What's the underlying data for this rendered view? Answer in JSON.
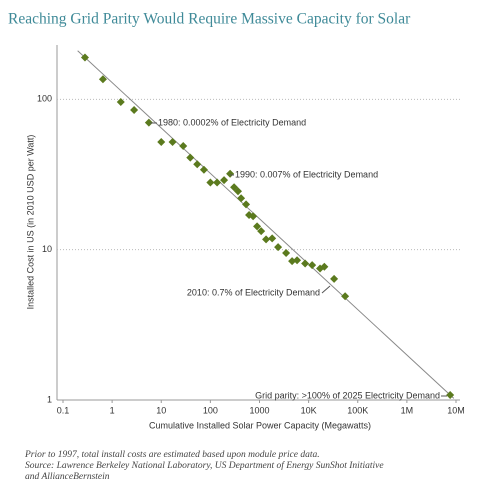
{
  "chart_data": {
    "type": "scatter",
    "title": "Reaching Grid Parity Would Require Massive Capacity for Solar",
    "x_label": "Cumulative Installed Solar Power Capacity (Megawatts)",
    "y_label": "Installed Cost in US (in 2010 USD per Watt)",
    "log_x": true,
    "log_y": true,
    "grid": "y",
    "color": "#5b7a1e",
    "trend_line": true,
    "xlim": [
      0.1,
      10000000
    ],
    "ylim": [
      1,
      230
    ],
    "xticks": [
      0.1,
      1,
      10,
      100,
      1000,
      {
        "value": 10000,
        "label": "10K"
      },
      {
        "value": 100000,
        "label": "100K"
      },
      {
        "value": 1000000,
        "label": "1M"
      },
      {
        "value": 10000000,
        "label": "10M"
      }
    ],
    "yticks": [
      1,
      10,
      100
    ],
    "x": [
      0.28,
      0.65,
      1.5,
      2.8,
      5.6,
      10,
      17,
      28,
      39,
      54,
      74,
      100,
      137,
      190,
      252,
      304,
      365,
      422,
      533,
      613,
      741,
      893,
      1080,
      1360,
      1810,
      2390,
      3480,
      4610,
      5820,
      8490,
      11800,
      17100,
      20900,
      33000,
      55300,
      7600000
    ],
    "values": [
      190,
      136,
      96,
      85,
      70,
      52,
      52,
      49,
      41,
      37,
      34,
      28,
      28,
      29,
      32,
      26,
      24.5,
      22,
      20,
      17,
      16.7,
      14.3,
      13.3,
      11.7,
      11.9,
      10.4,
      9.5,
      8.4,
      8.5,
      8.1,
      7.9,
      7.5,
      7.7,
      6.4,
      4.9,
      1.08
    ],
    "annotations": [
      "1980: 0.0002% of Electricity Demand",
      "1990: 0.007% of Electricity Demand",
      "2010: 0.7% of Electricity Demand",
      "Grid parity: >100% of 2025 Electricity Demand"
    ],
    "footnotes": [
      "Prior to 1997, total install costs are estimated based upon module price data.",
      "Source: Lawrence Berkeley National Laboratory, US Department of Energy SunShot Initiative",
      "and AllianceBernstein"
    ]
  }
}
